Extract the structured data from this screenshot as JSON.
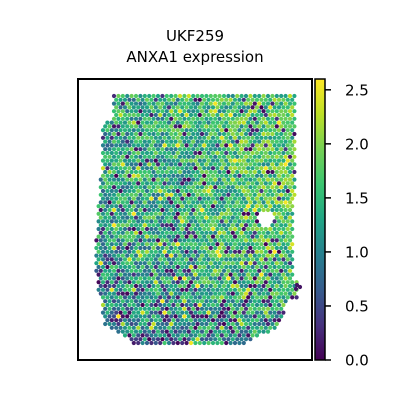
{
  "chart_data": {
    "type": "scatter",
    "title_line1": "UKF259",
    "title_line2": "ANXA1 expression",
    "xlabel": "",
    "ylabel": "",
    "colorbar": {
      "colormap": "viridis",
      "range": [
        0.0,
        2.6
      ],
      "ticks": [
        "0.0",
        "0.5",
        "1.0",
        "1.5",
        "2.0",
        "2.5"
      ],
      "tick_values": [
        0.0,
        0.5,
        1.0,
        1.5,
        2.0,
        2.5
      ]
    },
    "grid": false,
    "legend": "none",
    "spot_distribution": {
      "description_values": "hexagonal Visium spot grid covering the tissue section",
      "mean_expression": 1.4,
      "low_expression_region": "lower-left",
      "hole_region": "right-middle"
    }
  }
}
